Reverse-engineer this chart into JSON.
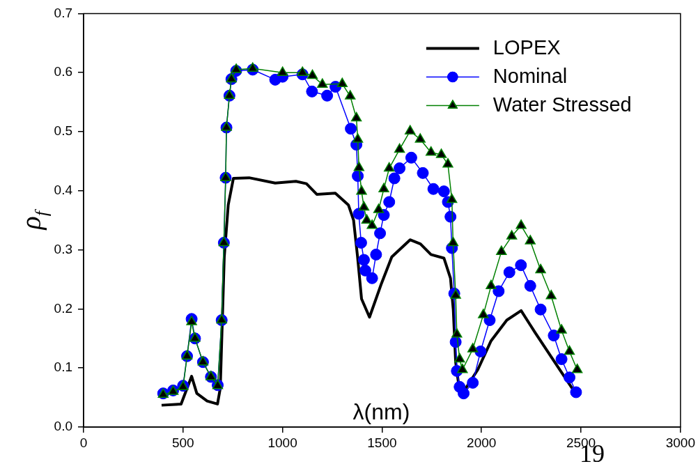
{
  "chart_data": {
    "type": "line",
    "xlabel": "λ(nm)",
    "ylabel": "ρ$_{f}$",
    "xlim": [
      0,
      3000
    ],
    "xticks": [
      0,
      500,
      1000,
      1500,
      2000,
      2500,
      3000
    ],
    "ylim": [
      0,
      0.7
    ],
    "yticks": [
      {
        "value": 0,
        "label": "0.0"
      },
      {
        "value": 0.1,
        "label": "0.1"
      },
      {
        "value": 0.2,
        "label": "0.2"
      },
      {
        "value": 0.3,
        "label": "0.3"
      },
      {
        "value": 0.4,
        "label": "0.4"
      },
      {
        "value": 0.5,
        "label": "0.5"
      },
      {
        "value": 0.6,
        "label": "0.6"
      },
      {
        "value": 0.7,
        "label": "0.7"
      }
    ],
    "grid": false,
    "legend": "top right",
    "annotations": [
      "19"
    ],
    "series": [
      {
        "name": "LOPEX",
        "color": "#000000",
        "marker": "none",
        "x": [
          392,
          490,
          543,
          569,
          621,
          673,
          687,
          707,
          727,
          753,
          832,
          963,
          1067,
          1120,
          1172,
          1265,
          1331,
          1357,
          1377,
          1397,
          1437,
          1497,
          1549,
          1641,
          1693,
          1746,
          1811,
          1844,
          1858,
          1870,
          1884,
          1904,
          1981,
          2048,
          2127,
          2199,
          2271,
          2350,
          2455,
          2470
        ],
        "values": [
          0.037,
          0.039,
          0.086,
          0.057,
          0.044,
          0.039,
          0.066,
          0.288,
          0.376,
          0.421,
          0.422,
          0.413,
          0.416,
          0.412,
          0.394,
          0.396,
          0.376,
          0.35,
          0.288,
          0.217,
          0.186,
          0.243,
          0.288,
          0.317,
          0.31,
          0.292,
          0.286,
          0.252,
          0.199,
          0.11,
          0.075,
          0.057,
          0.097,
          0.146,
          0.181,
          0.197,
          0.159,
          0.119,
          0.066,
          0.06
        ]
      },
      {
        "name": "Nominal",
        "color": "#0000ff",
        "marker": "circle",
        "x": [
          400,
          450,
          500,
          520,
          543,
          560,
          600,
          640,
          674,
          694,
          705,
          714,
          718,
          733,
          743,
          767,
          850,
          963,
          1000,
          1100,
          1148,
          1224,
          1266,
          1343,
          1371,
          1378,
          1383,
          1395,
          1409,
          1416,
          1450,
          1470,
          1490,
          1509,
          1536,
          1562,
          1588,
          1647,
          1705,
          1758,
          1811,
          1831,
          1844,
          1851,
          1863,
          1870,
          1876,
          1890,
          1910,
          1956,
          1995,
          2041,
          2086,
          2140,
          2198,
          2245,
          2297,
          2363,
          2402,
          2442,
          2475
        ],
        "values": [
          0.057,
          0.062,
          0.07,
          0.12,
          0.183,
          0.15,
          0.11,
          0.085,
          0.071,
          0.181,
          0.312,
          0.422,
          0.507,
          0.561,
          0.589,
          0.603,
          0.605,
          0.588,
          0.593,
          0.597,
          0.568,
          0.561,
          0.576,
          0.505,
          0.478,
          0.425,
          0.361,
          0.312,
          0.283,
          0.265,
          0.252,
          0.292,
          0.328,
          0.359,
          0.381,
          0.421,
          0.438,
          0.456,
          0.43,
          0.403,
          0.399,
          0.381,
          0.356,
          0.303,
          0.226,
          0.144,
          0.095,
          0.068,
          0.057,
          0.075,
          0.128,
          0.181,
          0.23,
          0.262,
          0.274,
          0.239,
          0.199,
          0.155,
          0.115,
          0.084,
          0.059
        ]
      },
      {
        "name": "Water Stressed",
        "color": "#008000",
        "marker": "triangle",
        "x": [
          400,
          450,
          500,
          520,
          543,
          560,
          600,
          640,
          674,
          694,
          705,
          714,
          718,
          733,
          743,
          767,
          850,
          1000,
          1100,
          1150,
          1200,
          1300,
          1340,
          1371,
          1378,
          1384,
          1397,
          1409,
          1423,
          1450,
          1483,
          1509,
          1536,
          1588,
          1641,
          1692,
          1746,
          1798,
          1831,
          1851,
          1857,
          1870,
          1876,
          1890,
          1904,
          1956,
          2009,
          2048,
          2100,
          2152,
          2199,
          2245,
          2297,
          2350,
          2402,
          2442,
          2481
        ],
        "values": [
          0.055,
          0.06,
          0.068,
          0.12,
          0.178,
          0.15,
          0.11,
          0.085,
          0.07,
          0.181,
          0.312,
          0.422,
          0.507,
          0.561,
          0.589,
          0.605,
          0.607,
          0.6,
          0.6,
          0.595,
          0.58,
          0.581,
          0.56,
          0.523,
          0.487,
          0.439,
          0.399,
          0.372,
          0.35,
          0.341,
          0.368,
          0.403,
          0.438,
          0.47,
          0.501,
          0.487,
          0.465,
          0.461,
          0.445,
          0.385,
          0.312,
          0.223,
          0.157,
          0.115,
          0.097,
          0.132,
          0.19,
          0.239,
          0.297,
          0.323,
          0.341,
          0.315,
          0.266,
          0.222,
          0.164,
          0.128,
          0.097
        ]
      }
    ]
  }
}
